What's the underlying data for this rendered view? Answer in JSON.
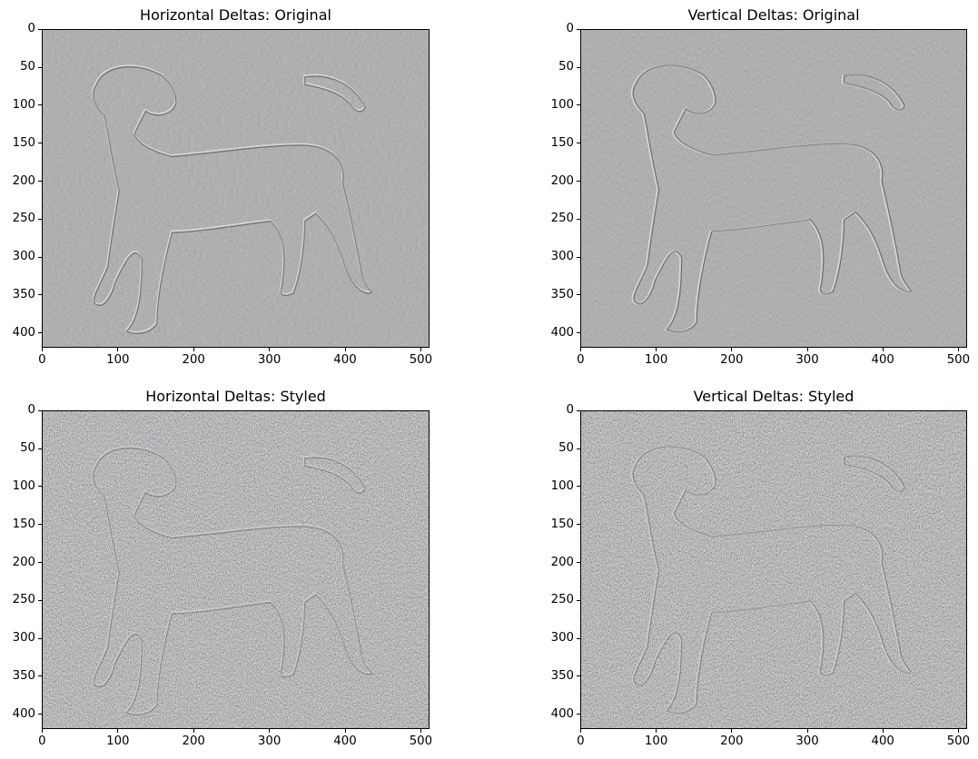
{
  "chart_data": [
    {
      "type": "image",
      "title": "Horizontal Deltas: Original",
      "content": "grayscale edge-filtered dog image",
      "palette": "gray",
      "xlim": [
        -0.5,
        511.5
      ],
      "ylim": [
        419.5,
        -0.5
      ],
      "xticks": [
        0,
        100,
        200,
        300,
        400,
        500
      ],
      "yticks": [
        0,
        50,
        100,
        150,
        200,
        250,
        300,
        350,
        400
      ]
    },
    {
      "type": "image",
      "title": "Vertical Deltas: Original",
      "content": "grayscale edge-filtered dog image",
      "palette": "gray",
      "xlim": [
        -0.5,
        511.5
      ],
      "ylim": [
        419.5,
        -0.5
      ],
      "xticks": [
        0,
        100,
        200,
        300,
        400,
        500
      ],
      "yticks": [
        0,
        50,
        100,
        150,
        200,
        250,
        300,
        350,
        400
      ]
    },
    {
      "type": "image",
      "title": "Horizontal Deltas: Styled",
      "content": "colorful noisy edge-filtered styled dog image",
      "palette": "color",
      "xlim": [
        -0.5,
        511.5
      ],
      "ylim": [
        419.5,
        -0.5
      ],
      "xticks": [
        0,
        100,
        200,
        300,
        400,
        500
      ],
      "yticks": [
        0,
        50,
        100,
        150,
        200,
        250,
        300,
        350,
        400
      ]
    },
    {
      "type": "image",
      "title": "Vertical Deltas: Styled",
      "content": "colorful noisy edge-filtered styled dog image",
      "palette": "color",
      "xlim": [
        -0.5,
        511.5
      ],
      "ylim": [
        419.5,
        -0.5
      ],
      "xticks": [
        0,
        100,
        200,
        300,
        400,
        500
      ],
      "yticks": [
        0,
        50,
        100,
        150,
        200,
        250,
        300,
        350,
        400
      ]
    }
  ]
}
